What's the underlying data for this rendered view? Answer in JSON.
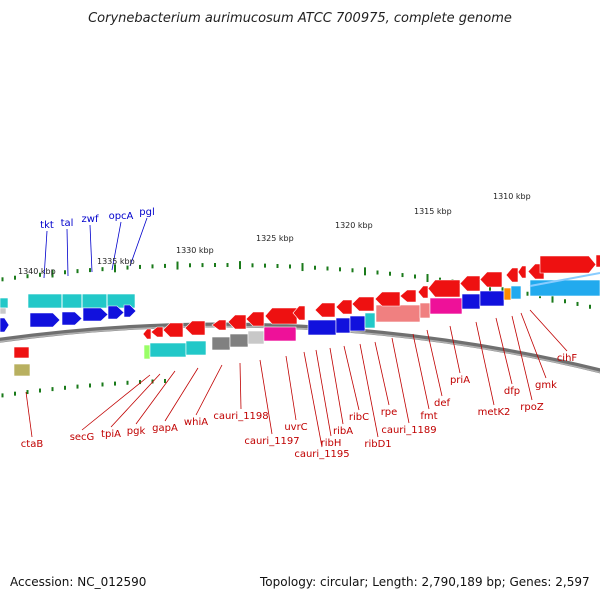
{
  "title": "Corynebacterium aurimucosum ATCC 700975, complete genome",
  "footer": {
    "accession": "Accession: NC_012590",
    "topology": "Topology: circular; Length: 2,790,189 bp; Genes: 2,597"
  },
  "colors": {
    "backbone": "#8a8a8a",
    "tick": "#1a7a1a",
    "label_red": "#c00000",
    "label_blue": "#0000cc",
    "gene_red": "#ee1111",
    "gene_blue": "#1111dd",
    "gene_cyan": "#22c8c8",
    "gene_magenta": "#ee1199",
    "gene_gray": "#808080",
    "gene_salmon": "#f08080",
    "gene_orange": "#ff8c00",
    "gene_olive": "#b8b060",
    "gene_lightgreen": "#99ff66",
    "gene_lightgray": "#c8c8c8",
    "gene_skyblue": "#22aaee"
  },
  "kbp_labels": [
    "1340 kbp",
    "1335 kbp",
    "1330 kbp",
    "1325 kbp",
    "1320 kbp",
    "1315 kbp",
    "1310 kbp"
  ],
  "top_genes": [
    "tkt",
    "tal",
    "zwf",
    "opcA",
    "pgl"
  ],
  "bottom_genes": [
    "ctaB",
    "secG",
    "tpiA",
    "pgk",
    "gapA",
    "whiA",
    "cauri_1198",
    "cauri_1197",
    "uvrC",
    "cauri_1195",
    "ribH",
    "ribA",
    "ribC",
    "ribD1",
    "rpe",
    "cauri_1189",
    "fmt",
    "def",
    "priA",
    "metK2",
    "dfp",
    "rpoZ",
    "gmk",
    "cihF"
  ]
}
